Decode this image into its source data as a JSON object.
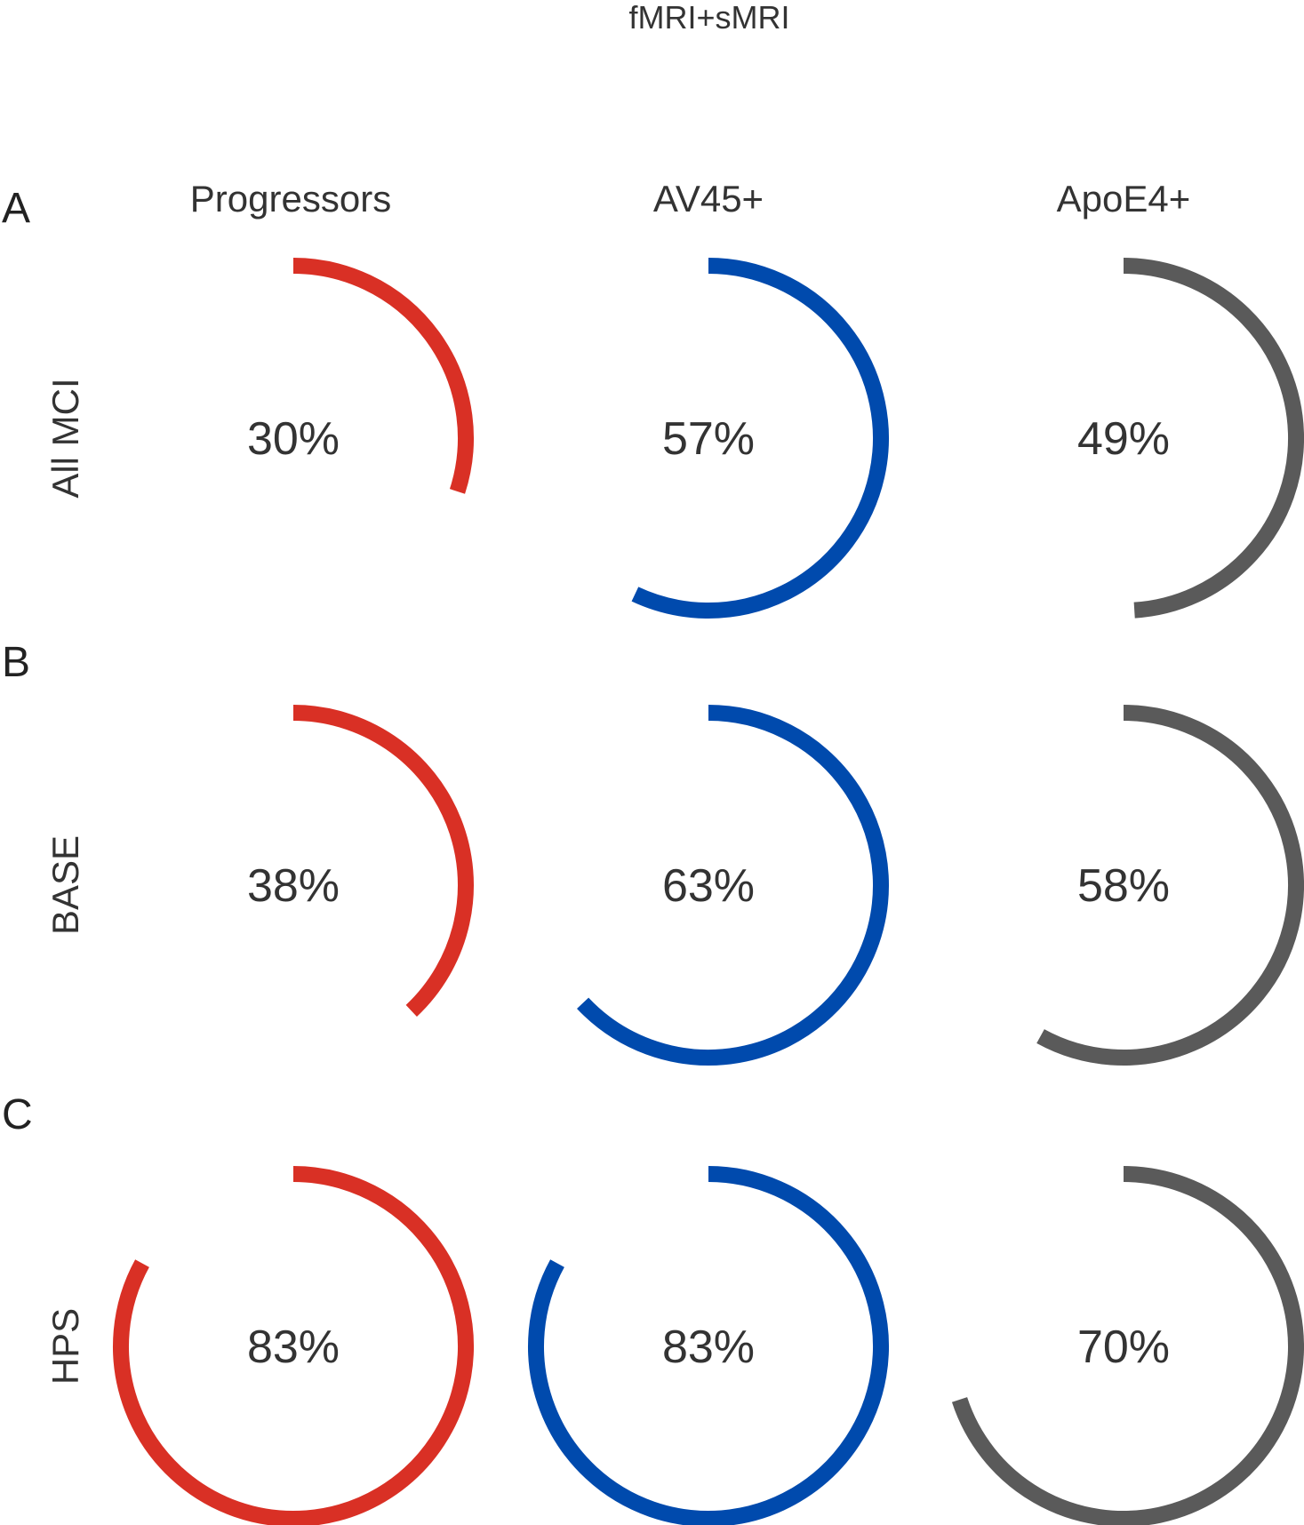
{
  "chart_data": {
    "type": "radial-progress",
    "title": "fMRI+sMRI",
    "columns": [
      "Progressors",
      "AV45+",
      "ApoE4+"
    ],
    "column_colors": [
      "#d93025",
      "#004aad",
      "#5a5a5a"
    ],
    "rows": [
      {
        "panel": "A",
        "label": "All MCI",
        "values": [
          30,
          57,
          49
        ],
        "value_labels": [
          "30%",
          "57%",
          "49%"
        ]
      },
      {
        "panel": "B",
        "label": "BASE",
        "values": [
          38,
          63,
          58
        ],
        "value_labels": [
          "38%",
          "63%",
          "58%"
        ]
      },
      {
        "panel": "C",
        "label": "HPS",
        "values": [
          83,
          83,
          70
        ],
        "value_labels": [
          "83%",
          "83%",
          "70%"
        ]
      }
    ]
  }
}
